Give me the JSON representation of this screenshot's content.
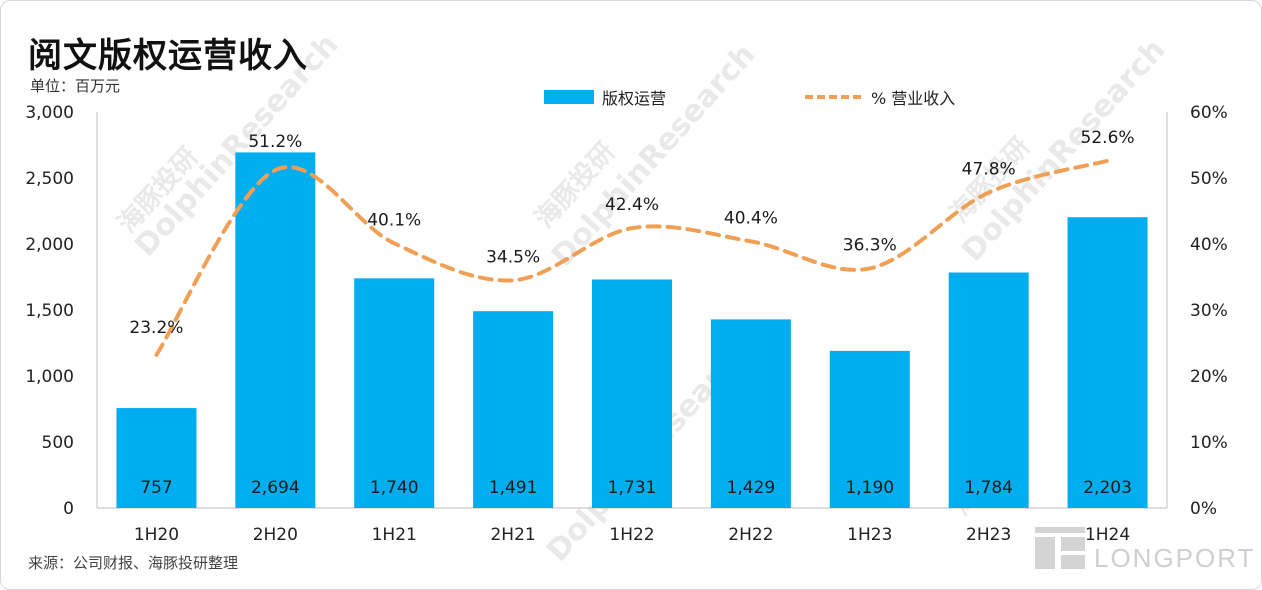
{
  "title": "阅文版权运营收入",
  "unit": "单位：百万元",
  "source": "来源：公司财报、海豚投研整理",
  "brand": "LONGPORT",
  "watermark": [
    "海豚投研",
    "DolphinResearch"
  ],
  "colors": {
    "bar": "#00ADEF",
    "line": "#F0A055"
  },
  "chart_data": {
    "type": "bar",
    "title": "阅文版权运营收入",
    "categories": [
      "1H20",
      "2H20",
      "1H21",
      "2H21",
      "1H22",
      "2H22",
      "1H23",
      "2H23",
      "1H24"
    ],
    "series": [
      {
        "name": "版权运营",
        "type": "bar",
        "axis": "left",
        "values": [
          757,
          2694,
          1740,
          1491,
          1731,
          1429,
          1190,
          1784,
          2203
        ],
        "labels": [
          "757",
          "2,694",
          "1,740",
          "1,491",
          "1,731",
          "1,429",
          "1,190",
          "1,784",
          "2,203"
        ]
      },
      {
        "name": "% 营业收入",
        "type": "line",
        "style": "dashed",
        "smooth": true,
        "axis": "right",
        "values": [
          23.2,
          51.2,
          40.1,
          34.5,
          42.4,
          40.4,
          36.3,
          47.8,
          52.6
        ],
        "labels": [
          "23.2%",
          "51.2%",
          "40.1%",
          "34.5%",
          "42.4%",
          "40.4%",
          "36.3%",
          "47.8%",
          "52.6%"
        ]
      }
    ],
    "y_left": {
      "ylim": [
        0,
        3000
      ],
      "ticks": [
        "0",
        "500",
        "1,000",
        "1,500",
        "2,000",
        "2,500",
        "3,000"
      ]
    },
    "y_right": {
      "ylim": [
        0,
        60
      ],
      "ticks": [
        "0%",
        "10%",
        "20%",
        "30%",
        "40%",
        "50%",
        "60%"
      ]
    },
    "legend_position": "top",
    "grid": false
  }
}
